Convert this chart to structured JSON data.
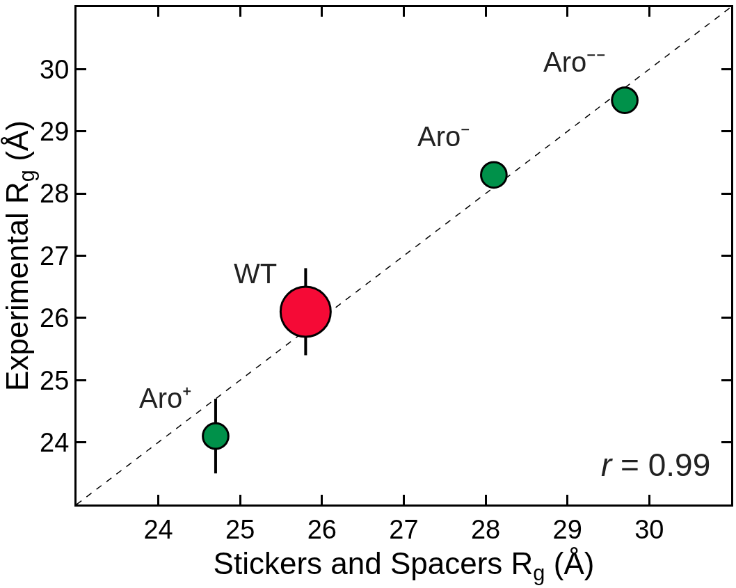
{
  "chart_data": {
    "type": "bubble",
    "xlabel": "Stickers and Spacers R$_{g}$ (Å)",
    "ylabel": "Experimental R$_{g}$ (Å)",
    "xlim": [
      23,
      31
    ],
    "ylim": [
      23,
      31
    ],
    "xticks": [
      24,
      25,
      26,
      27,
      28,
      29,
      30
    ],
    "yticks": [
      24,
      25,
      26,
      27,
      28,
      29,
      30
    ],
    "grid": false,
    "series": [
      {
        "type": "line",
        "line_style": "dashed",
        "marker": "none",
        "color": "#000000",
        "x": [
          23,
          31
        ],
        "values": [
          23,
          31
        ]
      },
      {
        "x": [
          24.7,
          25.8,
          28.1,
          29.7
        ],
        "values": [
          24.1,
          26.1,
          28.3,
          29.5
        ],
        "sizes": [
          0.26,
          1,
          0.26,
          0.26
        ],
        "colors": [
          "#00914a",
          "#f50a36",
          "#00914a",
          "#00914a"
        ],
        "errors": [
          0.6,
          0.7,
          null,
          null
        ]
      }
    ],
    "annotations": [
      {
        "text": "Aro⁺",
        "x": 24.7,
        "y": 24.1
      },
      {
        "text": "WT",
        "x": 25.8,
        "y": 26.1
      },
      {
        "text": "Aro⁻",
        "x": 28.1,
        "y": 28.3
      },
      {
        "text": "Aro⁻⁻",
        "x": 29.7,
        "y": 29.5
      },
      "r = 0.99"
    ]
  }
}
